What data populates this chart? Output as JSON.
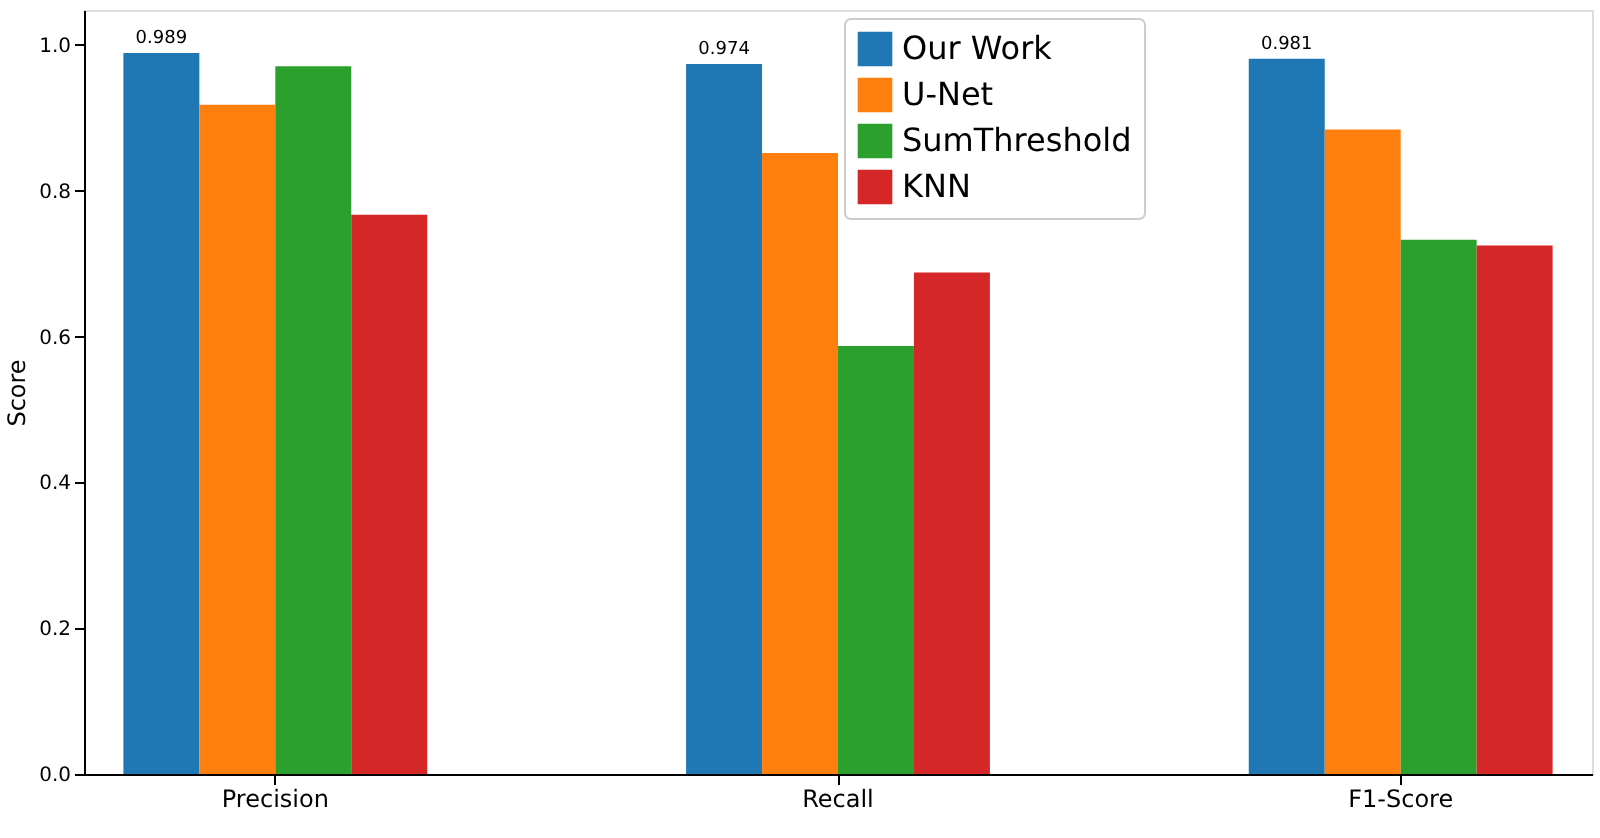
{
  "chart_data": {
    "type": "bar",
    "ylabel": "Score",
    "categories": [
      "Precision",
      "Recall",
      "F1-Score"
    ],
    "series": [
      {
        "name": "Our Work",
        "color": "#1f77b4",
        "values": [
          0.989,
          0.974,
          0.981
        ],
        "value_labels": [
          "0.989",
          "0.974",
          "0.981"
        ]
      },
      {
        "name": "U-Net",
        "color": "#ff7f0e",
        "values": [
          0.918,
          0.852,
          0.884
        ]
      },
      {
        "name": "SumThreshold",
        "color": "#2ca02c",
        "values": [
          0.971,
          0.587,
          0.733
        ]
      },
      {
        "name": "KNN",
        "color": "#d62728",
        "values": [
          0.767,
          0.688,
          0.725
        ]
      }
    ],
    "ylim": [
      0,
      1.048
    ],
    "yticks": [
      {
        "value": 0,
        "label": "0.0"
      },
      {
        "value": 0.2,
        "label": "0.2"
      },
      {
        "value": 0.4,
        "label": "0.4"
      },
      {
        "value": 0.6,
        "label": "0.6"
      },
      {
        "value": 0.8,
        "label": "0.8"
      },
      {
        "value": 1.0,
        "label": "1.0"
      }
    ],
    "grid": false,
    "legend": "top"
  }
}
